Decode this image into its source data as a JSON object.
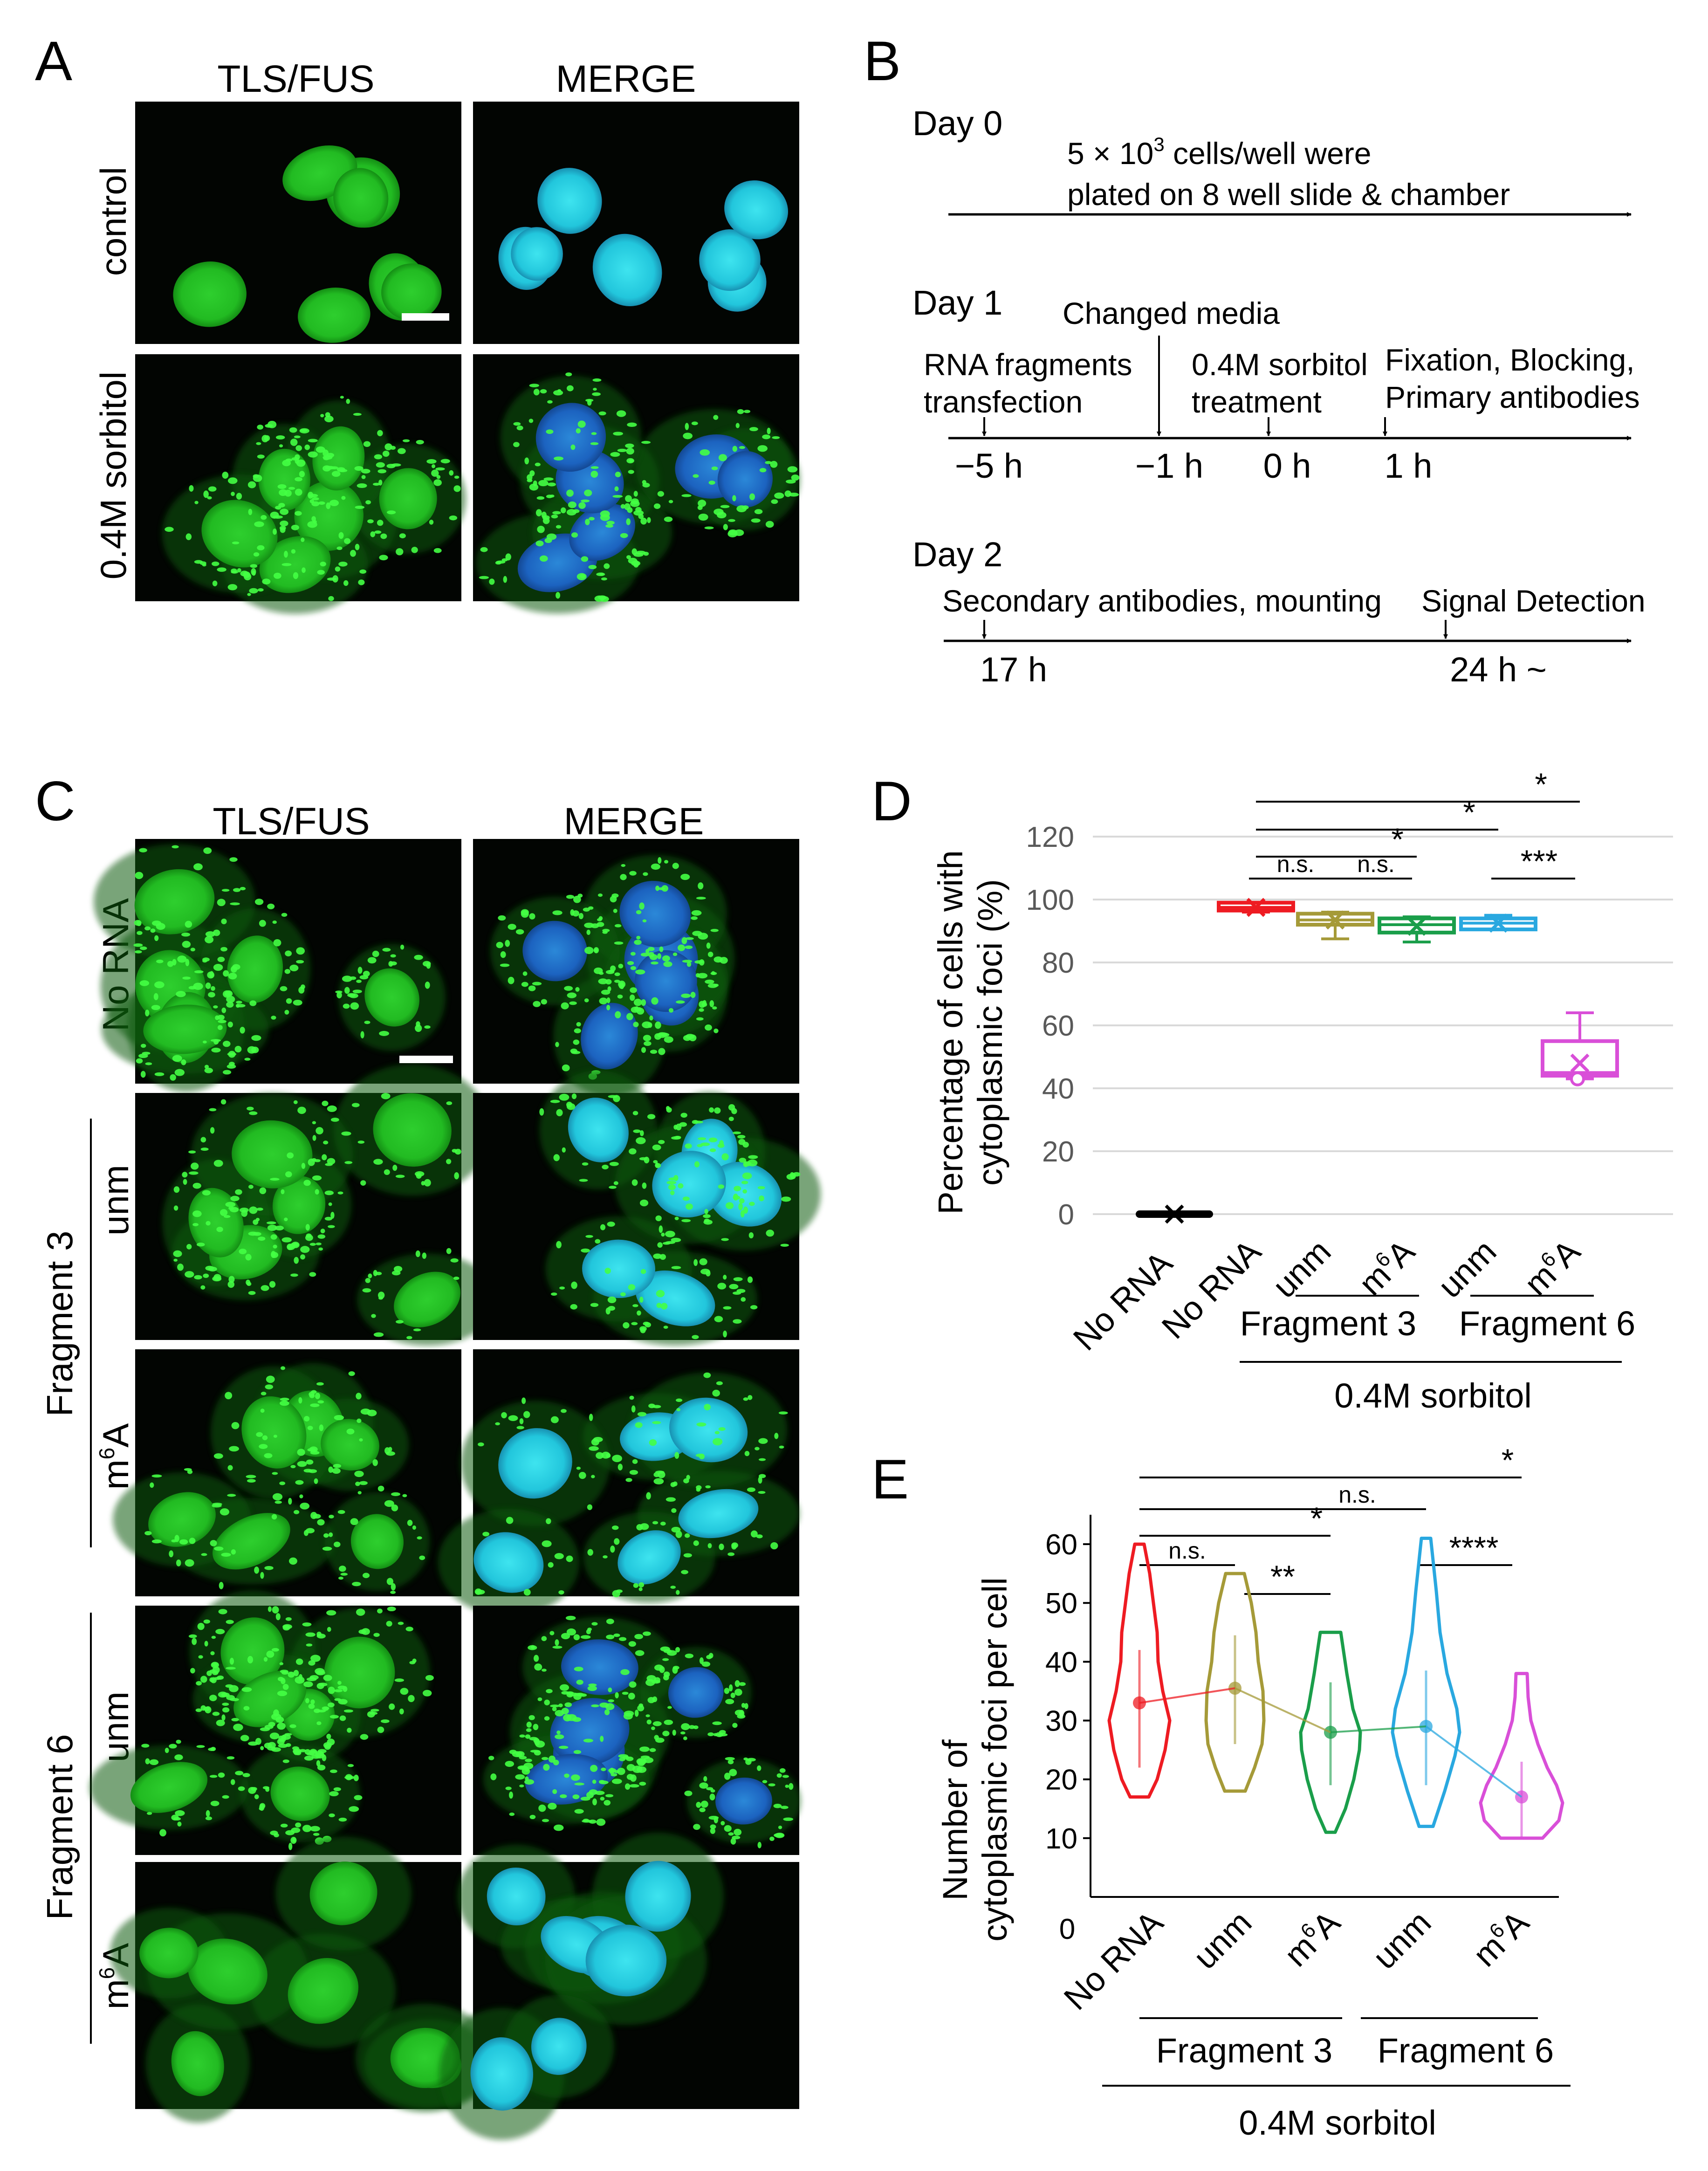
{
  "panels": {
    "A": {
      "letter": "A",
      "col_headers": [
        "TLS/FUS",
        "MERGE"
      ],
      "row_labels": [
        "control",
        "0.4M sorbitol"
      ]
    },
    "B": {
      "letter": "B",
      "day0": {
        "label": "Day 0",
        "note_line1": "5 × 10",
        "note_sup": "3",
        "note_line1_tail": " cells/well were",
        "note_line2": "plated on 8 well slide & chamber"
      },
      "day1": {
        "label": "Day 1",
        "events": [
          {
            "line1": "RNA fragments",
            "line2": "transfection",
            "time": "−5 h"
          },
          {
            "line1": "Changed media",
            "line2": "",
            "time": "−1 h"
          },
          {
            "line1": "0.4M sorbitol",
            "line2": "treatment",
            "time": "0 h"
          },
          {
            "line1": "Fixation, Blocking,",
            "line2": "Primary antibodies",
            "time": "1 h"
          }
        ]
      },
      "day2": {
        "label": "Day 2",
        "events": [
          {
            "line1": "Secondary antibodies, mounting",
            "time": "17 h"
          },
          {
            "line1": "Signal Detection",
            "time": "24 h ~"
          }
        ]
      }
    },
    "C": {
      "letter": "C",
      "col_headers": [
        "TLS/FUS",
        "MERGE"
      ],
      "row_labels": [
        "No RNA",
        "unm",
        "m6A",
        "unm",
        "m6A"
      ],
      "group_labels": [
        "Fragment 3",
        "Fragment 6"
      ]
    },
    "D": {
      "letter": "D",
      "sig": [
        "*",
        "*",
        "*",
        "n.s.",
        "n.s.",
        "***"
      ]
    },
    "E": {
      "letter": "E",
      "sig": [
        "*",
        "n.s.",
        "*",
        "n.s.",
        "**",
        "****"
      ]
    }
  },
  "colors": {
    "red": "#ee1b22",
    "olive": "#a59a38",
    "green": "#1a9e4a",
    "blue": "#29a8e0",
    "magenta": "#d94fd8",
    "black": "#000000"
  },
  "chart_data": [
    {
      "type": "box",
      "panel": "D",
      "ylabel_line1": "Percentage of cells with",
      "ylabel_line2": "cytoplasmic foci (%)",
      "ylim": [
        0,
        120
      ],
      "yticks": [
        0,
        20,
        40,
        60,
        80,
        100,
        120
      ],
      "grid": true,
      "categories": [
        "No RNA",
        "No RNA",
        "unm",
        "m6A",
        "unm",
        "m6A"
      ],
      "groups": [
        {
          "label": "Fragment 3",
          "members": [
            "unm",
            "m6A"
          ]
        },
        {
          "label": "Fragment 6",
          "members": [
            "unm",
            "m6A"
          ]
        }
      ],
      "super_group": "0.4M sorbitol",
      "series": [
        {
          "category": "No RNA",
          "min": 0,
          "q1": 0,
          "median": 0,
          "q3": 0,
          "max": 0,
          "mean": 0
        },
        {
          "category": "No RNA",
          "min": 96,
          "q1": 96.5,
          "median": 97.5,
          "q3": 99,
          "max": 99,
          "mean": 97.5
        },
        {
          "category": "unm",
          "min": 87.5,
          "q1": 92,
          "median": 93.5,
          "q3": 95.5,
          "max": 96,
          "mean": 93.5
        },
        {
          "category": "m6A",
          "min": 86.5,
          "q1": 89.5,
          "median": 92,
          "q3": 94,
          "max": 94.5,
          "mean": 91.5
        },
        {
          "category": "unm",
          "min": 90.5,
          "q1": 90.5,
          "median": 92.5,
          "q3": 94,
          "max": 95,
          "mean": 92.5
        },
        {
          "category": "m6A",
          "min": 43,
          "q1": 44,
          "median": 45,
          "q3": 55,
          "max": 64,
          "mean": 48
        }
      ],
      "comparisons": [
        {
          "from": 1,
          "to": 5,
          "label": "*"
        },
        {
          "from": 1,
          "to": 4,
          "label": "*"
        },
        {
          "from": 1,
          "to": 3,
          "label": "*"
        },
        {
          "from": 1,
          "to": 2,
          "label": "n.s."
        },
        {
          "from": 2,
          "to": 3,
          "label": "n.s."
        },
        {
          "from": 4,
          "to": 5,
          "label": "***"
        }
      ]
    },
    {
      "type": "violin",
      "panel": "E",
      "ylabel_line1": "Number of",
      "ylabel_line2": "cytoplasmic foci per cell",
      "ylim": [
        0,
        65
      ],
      "yticks": [
        10,
        20,
        30,
        40,
        50,
        60
      ],
      "zero_label": "0",
      "categories": [
        "No RNA",
        "unm",
        "m6A",
        "unm",
        "m6A"
      ],
      "groups": [
        {
          "label": "Fragment 3",
          "members": [
            "unm",
            "m6A"
          ]
        },
        {
          "label": "Fragment 6",
          "members": [
            "unm",
            "m6A"
          ]
        }
      ],
      "super_group": "0.4M sorbitol",
      "series": [
        {
          "category": "No RNA",
          "min": 17,
          "max": 60,
          "mean": 33,
          "sd_low": 22,
          "sd_high": 42
        },
        {
          "category": "unm",
          "min": 18,
          "max": 55,
          "mean": 35.5,
          "sd_low": 26,
          "sd_high": 44.5
        },
        {
          "category": "m6A",
          "min": 11,
          "max": 45,
          "mean": 28,
          "sd_low": 19,
          "sd_high": 36.5
        },
        {
          "category": "unm",
          "min": 12,
          "max": 61,
          "mean": 29,
          "sd_low": 19,
          "sd_high": 38.5
        },
        {
          "category": "m6A",
          "min": 10,
          "max": 38,
          "mean": 17,
          "sd_low": 10,
          "sd_high": 23
        }
      ],
      "comparisons": [
        {
          "from": 0,
          "to": 4,
          "label": "*"
        },
        {
          "from": 0,
          "to": 3,
          "label": "n.s."
        },
        {
          "from": 0,
          "to": 2,
          "label": "*"
        },
        {
          "from": 0,
          "to": 1,
          "label": "n.s."
        },
        {
          "from": 1,
          "to": 2,
          "label": "**"
        },
        {
          "from": 3,
          "to": 4,
          "label": "****"
        }
      ]
    }
  ]
}
